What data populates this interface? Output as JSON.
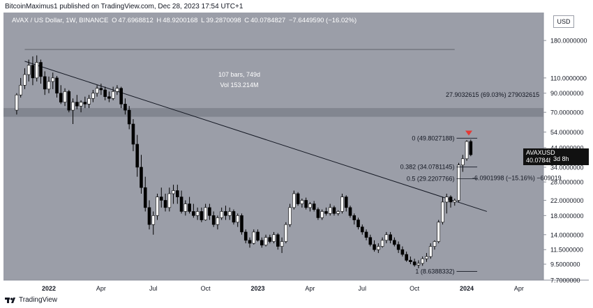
{
  "header": {
    "text": "BitcoinMaximus1 published on TradingView.com, Dec 28, 2023 17:54 UTC+1"
  },
  "legend": {
    "symbol": "AVAX / US Dollar, 1W, BINANCE",
    "o_label": "O",
    "o": "47.6968812",
    "h_label": "H",
    "h": "48.9200168",
    "l_label": "L",
    "l": "39.2870098",
    "c_label": "C",
    "c": "40.0784827",
    "change": "−7.6449590 (−16.02%)"
  },
  "currency": "USD",
  "footer": {
    "brand": "TradingView"
  },
  "price_tag": {
    "symbol": "AVAXUSD",
    "value": "40.0784827",
    "countdown": "3d 8h"
  },
  "annotations": {
    "range_bars": "107 bars, 749d",
    "range_vol": "Vol 153.214M",
    "measure": "27.9032615 (69.03%) 279032615",
    "measure2": "-6.0901998 (−15.16%) −609019",
    "fib": [
      {
        "label": "0 (49.8027188)",
        "price": 49.8027188
      },
      {
        "label": "0.382 (34.0781145)",
        "price": 34.0781145
      },
      {
        "label": "0.5 (29.2207766)",
        "price": 29.2207766
      },
      {
        "label": "1 (8.6388332)",
        "price": 8.6388332
      }
    ]
  },
  "colors": {
    "plot_bg": "#9b9ea8",
    "up": "#ffffff",
    "down": "#000000",
    "band": "#7f838d",
    "line": "#131722",
    "arrow": "#e53935"
  },
  "chart_data": {
    "type": "candlestick",
    "title": "AVAX / US Dollar, 1W, BINANCE",
    "y_scale": "log",
    "ylim": [
      7.7,
      260
    ],
    "y_ticks": [
      "180.0000000",
      "110.0000000",
      "90.0000000",
      "70.0000000",
      "54.0000000",
      "44.0000000",
      "34.0000000",
      "28.0000000",
      "22.0000000",
      "18.0000000",
      "14.0000000",
      "11.5000000",
      "9.5000000",
      "7.7000000"
    ],
    "y_tick_values": [
      180,
      110,
      90,
      70,
      54,
      44,
      34,
      28,
      22,
      18,
      14,
      11.5,
      9.5,
      7.7
    ],
    "x_ticks": [
      "2022",
      "Apr",
      "Jul",
      "Oct",
      "2023",
      "Apr",
      "Jul",
      "Oct",
      "2024",
      "Apr"
    ],
    "x_tick_weeks": [
      0,
      13,
      26,
      39,
      52,
      65,
      78,
      91,
      104,
      117
    ],
    "first_week": -8,
    "candles": [
      [
        72,
        90,
        68,
        88
      ],
      [
        88,
        110,
        85,
        100
      ],
      [
        100,
        125,
        95,
        115
      ],
      [
        115,
        140,
        105,
        130
      ],
      [
        130,
        146,
        100,
        110
      ],
      [
        110,
        148,
        105,
        135
      ],
      [
        135,
        140,
        102,
        112
      ],
      [
        112,
        120,
        88,
        95
      ],
      [
        95,
        112,
        90,
        105
      ],
      [
        105,
        118,
        95,
        110
      ],
      [
        110,
        113,
        85,
        90
      ],
      [
        90,
        100,
        78,
        80
      ],
      [
        80,
        96,
        76,
        92
      ],
      [
        92,
        94,
        70,
        72
      ],
      [
        72,
        84,
        60,
        80
      ],
      [
        80,
        88,
        73,
        76
      ],
      [
        76,
        82,
        70,
        80
      ],
      [
        80,
        86,
        74,
        78
      ],
      [
        78,
        88,
        74,
        84
      ],
      [
        84,
        94,
        80,
        90
      ],
      [
        90,
        100,
        86,
        96
      ],
      [
        96,
        102,
        88,
        94
      ],
      [
        94,
        98,
        82,
        86
      ],
      [
        86,
        92,
        80,
        84
      ],
      [
        84,
        98,
        82,
        92
      ],
      [
        92,
        100,
        88,
        96
      ],
      [
        96,
        98,
        74,
        78
      ],
      [
        78,
        84,
        68,
        72
      ],
      [
        72,
        76,
        56,
        60
      ],
      [
        60,
        64,
        42,
        46
      ],
      [
        46,
        52,
        30,
        34
      ],
      [
        34,
        40,
        24,
        26
      ],
      [
        26,
        30,
        19,
        20
      ],
      [
        20,
        22,
        15,
        16
      ],
      [
        16,
        19,
        14,
        18
      ],
      [
        18,
        24,
        17,
        23
      ],
      [
        23,
        26,
        20,
        22
      ],
      [
        22,
        24,
        19,
        20
      ],
      [
        20,
        26,
        19,
        24
      ],
      [
        24,
        27,
        21,
        25
      ],
      [
        25,
        27,
        21,
        23
      ],
      [
        23,
        25,
        18.5,
        19
      ],
      [
        19,
        22,
        18,
        21
      ],
      [
        21,
        23,
        18.5,
        19
      ],
      [
        19,
        21,
        17.5,
        18
      ],
      [
        18,
        20,
        17,
        19
      ],
      [
        19,
        20,
        16.5,
        17
      ],
      [
        17,
        21,
        16.8,
        20
      ],
      [
        20,
        21,
        17,
        18
      ],
      [
        18,
        19,
        15.5,
        16
      ],
      [
        16,
        18,
        15,
        17.5
      ],
      [
        17.5,
        20,
        17,
        19
      ],
      [
        19,
        20.5,
        17,
        18
      ],
      [
        18,
        20,
        17,
        19
      ],
      [
        19,
        19.5,
        16,
        16.5
      ],
      [
        16.5,
        18.5,
        15.5,
        18
      ],
      [
        18,
        18.5,
        14,
        14.5
      ],
      [
        14.5,
        15,
        12.5,
        13
      ],
      [
        13,
        13.5,
        11.8,
        12.5
      ],
      [
        12.5,
        15,
        12.3,
        14.5
      ],
      [
        14.5,
        15,
        12.8,
        13
      ],
      [
        13,
        13.5,
        11.8,
        12.2
      ],
      [
        12.2,
        14,
        12,
        13.5
      ],
      [
        13.5,
        14,
        12.5,
        12.8
      ],
      [
        12.8,
        14.5,
        12.5,
        14
      ],
      [
        14,
        14.3,
        11.5,
        12
      ],
      [
        12,
        13.5,
        11,
        12.8
      ],
      [
        12.8,
        16.5,
        12.5,
        16
      ],
      [
        16,
        21,
        15.5,
        20
      ],
      [
        20,
        25,
        19.5,
        24
      ],
      [
        24,
        24.5,
        20.5,
        21
      ],
      [
        21,
        22.5,
        20,
        22
      ],
      [
        22,
        22.8,
        19.5,
        20
      ],
      [
        20,
        21.5,
        19,
        21
      ],
      [
        21,
        21.8,
        19,
        19.5
      ],
      [
        19.5,
        20,
        17,
        17.5
      ],
      [
        17.5,
        19.5,
        17,
        19
      ],
      [
        19,
        20,
        18,
        18.5
      ],
      [
        18.5,
        21,
        18,
        20
      ],
      [
        20,
        20.5,
        18,
        18.5
      ],
      [
        18.5,
        19.3,
        18,
        19
      ],
      [
        19,
        24,
        18.5,
        23
      ],
      [
        23,
        23.5,
        19,
        20
      ],
      [
        20,
        20.5,
        17.5,
        18
      ],
      [
        18,
        18.5,
        16,
        17
      ],
      [
        17,
        17.5,
        15,
        15.5
      ],
      [
        15.5,
        16,
        14,
        14.5
      ],
      [
        14.5,
        15,
        13,
        13.5
      ],
      [
        13.5,
        14,
        12,
        12.3
      ],
      [
        12.3,
        13,
        11.2,
        11.5
      ],
      [
        11.5,
        12.5,
        11,
        12
      ],
      [
        12,
        13.5,
        11.8,
        13
      ],
      [
        13,
        14.5,
        12.5,
        14
      ],
      [
        14,
        14.5,
        12.5,
        13
      ],
      [
        13,
        13.5,
        12,
        12.3
      ],
      [
        12.3,
        12.8,
        11,
        11.5
      ],
      [
        11.5,
        12,
        10.5,
        10.8
      ],
      [
        10.8,
        11.2,
        9.8,
        10
      ],
      [
        10,
        10.5,
        9.5,
        9.8
      ],
      [
        9.8,
        10.2,
        9.2,
        9.4
      ],
      [
        9.4,
        10,
        9,
        9.6
      ],
      [
        9.6,
        10.5,
        9.3,
        10.2
      ],
      [
        10.2,
        11,
        9.8,
        10.5
      ],
      [
        10.5,
        12.5,
        10.2,
        12
      ],
      [
        12,
        13,
        11.5,
        12.8
      ],
      [
        12.8,
        17,
        12.5,
        16.5
      ],
      [
        16.5,
        23,
        16,
        21.5
      ],
      [
        21.5,
        24,
        18.5,
        23
      ],
      [
        23,
        23.5,
        20,
        21.5
      ],
      [
        21.5,
        22.5,
        20.5,
        22
      ],
      [
        22,
        36,
        21.5,
        35
      ],
      [
        35,
        40,
        32,
        38
      ],
      [
        38,
        48.5,
        37,
        47.7
      ],
      [
        47.7,
        48.9,
        39.3,
        40.08
      ]
    ],
    "trendline": {
      "from": [
        -6,
        137
      ],
      "to": [
        109,
        19
      ]
    },
    "range_line": {
      "from_week": -6,
      "to_week": 101,
      "price": 160
    },
    "measure_band": {
      "from": 66,
      "to": 74
    },
    "fib_from_week": 98,
    "fib_to_week": 104,
    "arrow": {
      "week": 100,
      "price": 53
    }
  }
}
